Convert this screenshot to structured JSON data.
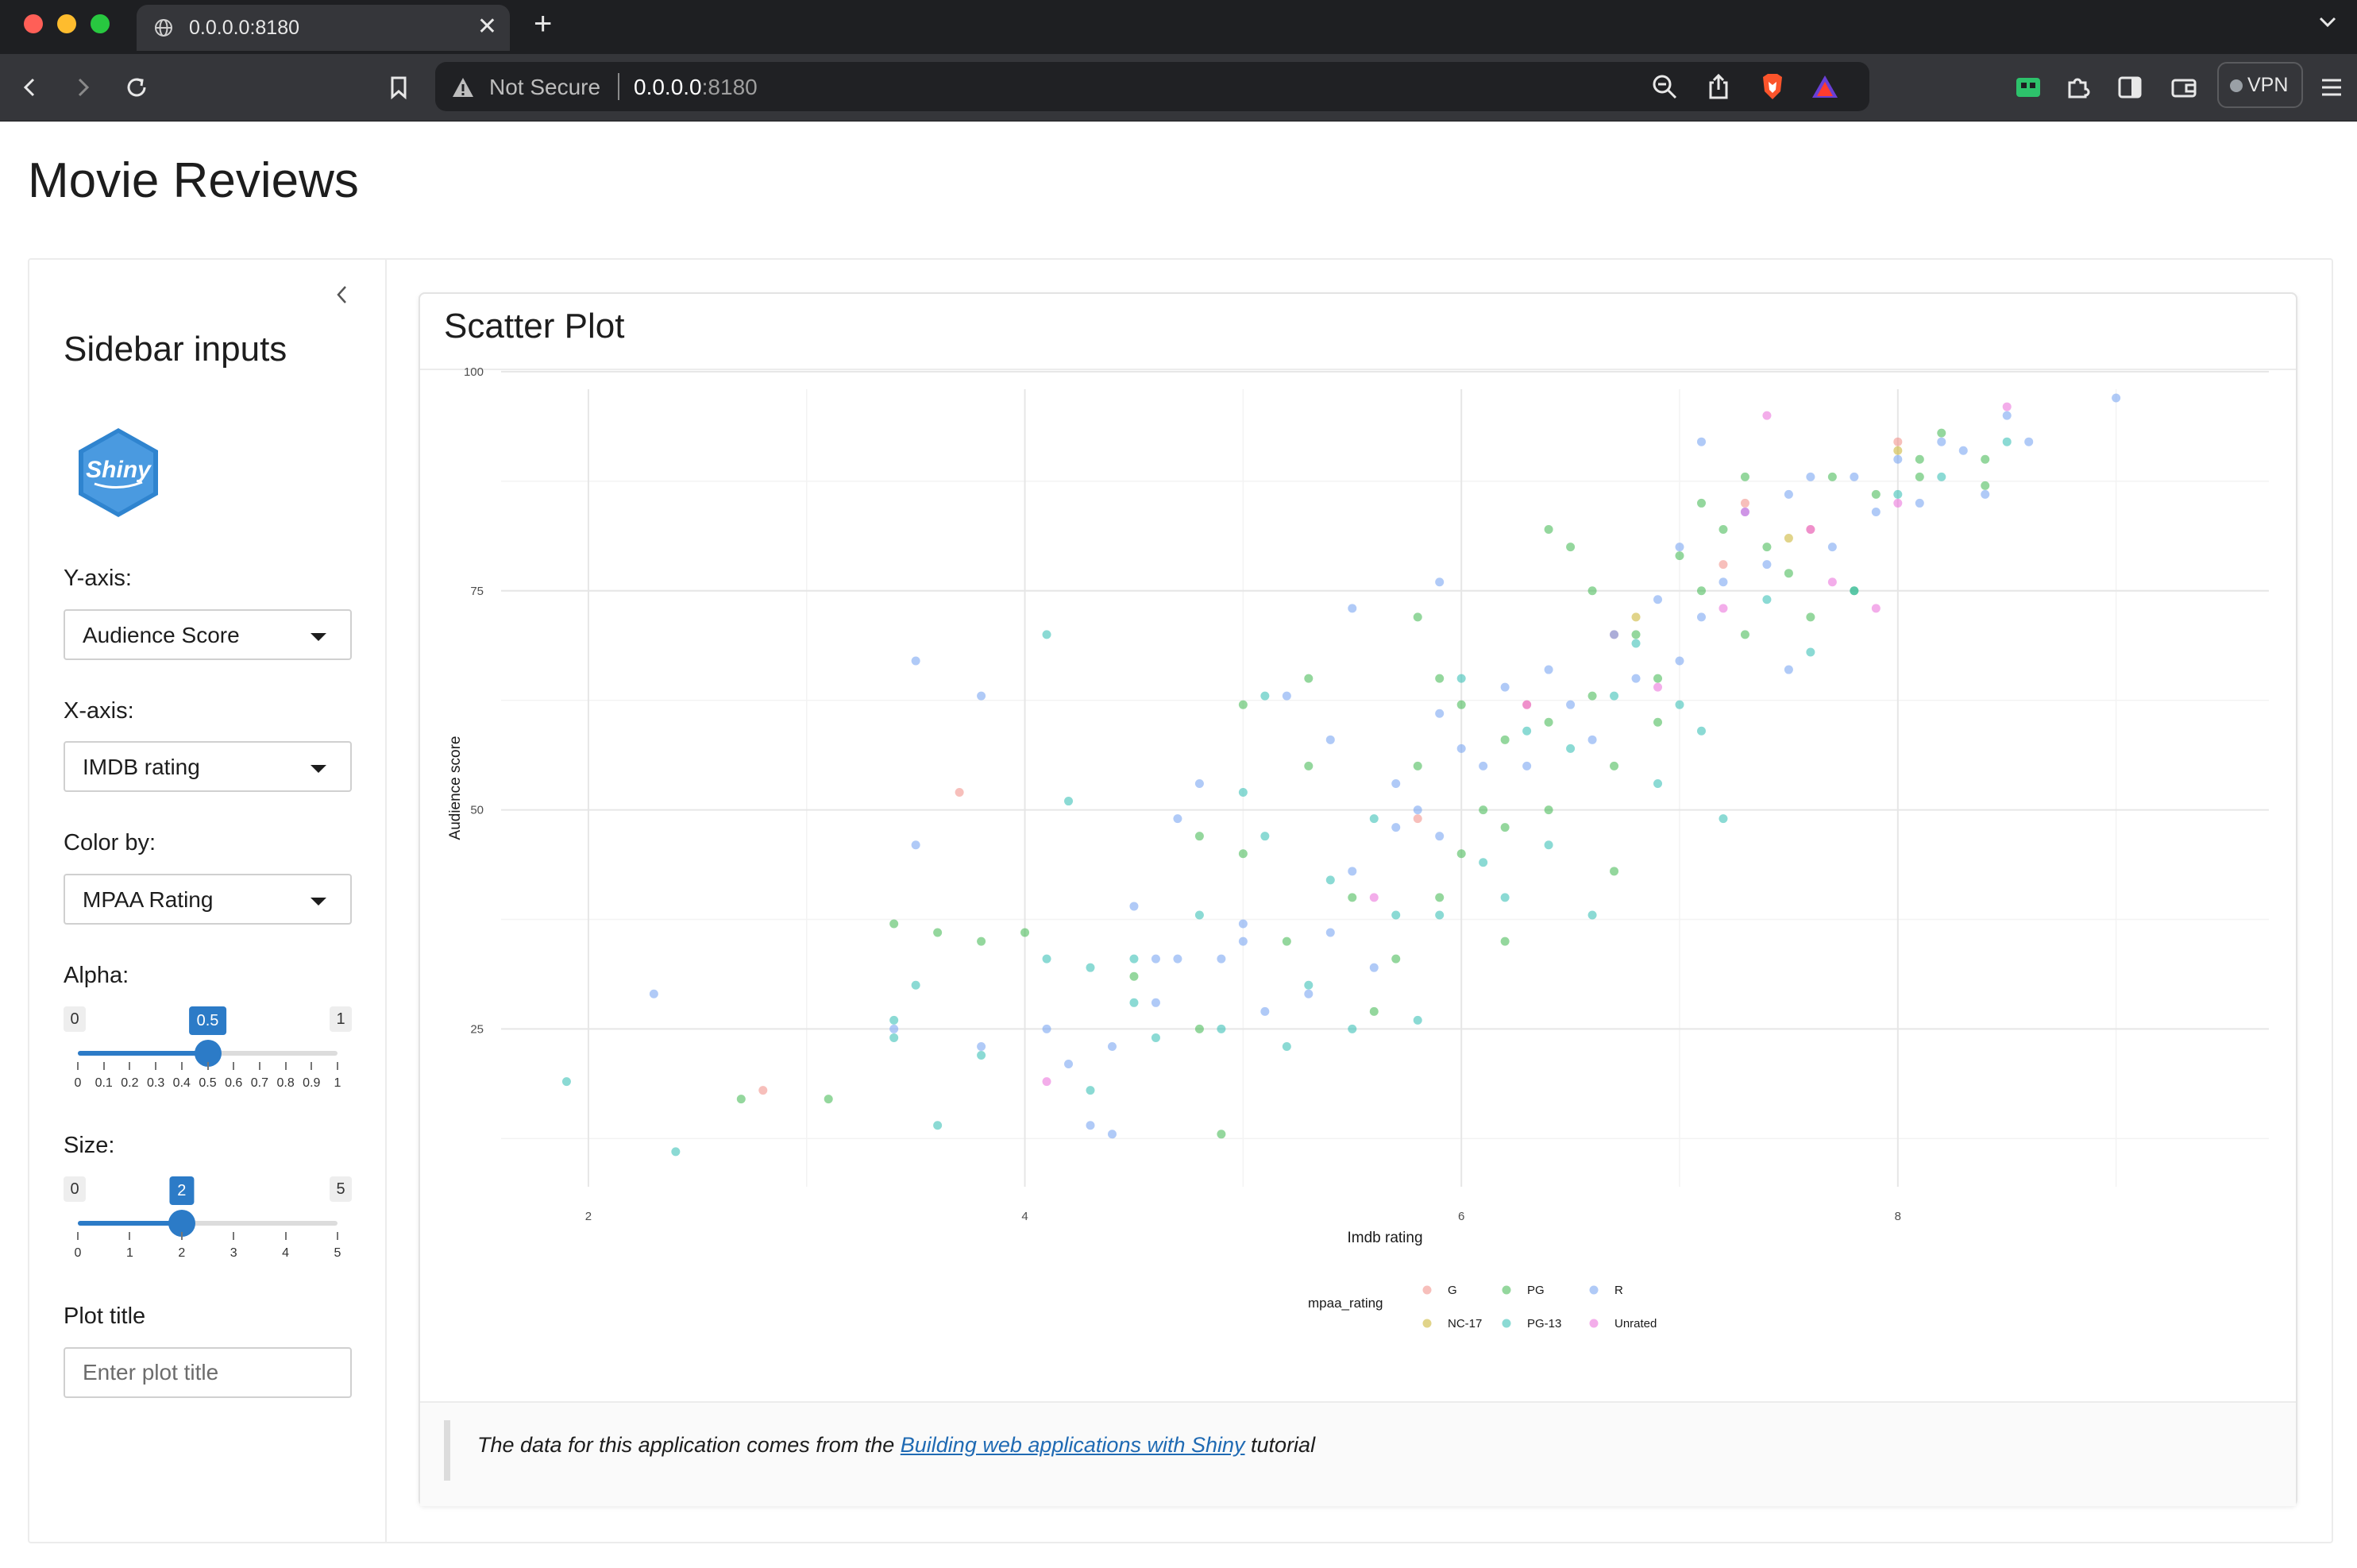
{
  "browser": {
    "tab_title": "0.0.0.0:8180",
    "security_label": "Not Secure",
    "url_host": "0.0.0.0",
    "url_port": ":8180",
    "vpn_label": "VPN"
  },
  "page": {
    "title": "Movie Reviews"
  },
  "sidebar": {
    "title": "Sidebar inputs",
    "logo_text": "Shiny",
    "y_axis": {
      "label": "Y-axis:",
      "value": "Audience Score"
    },
    "x_axis": {
      "label": "X-axis:",
      "value": "IMDB rating"
    },
    "color_by": {
      "label": "Color by:",
      "value": "MPAA Rating"
    },
    "alpha": {
      "label": "Alpha:",
      "min": "0",
      "max": "1",
      "value": "0.5",
      "fraction": 0.5,
      "ticks": [
        "0",
        "0.1",
        "0.2",
        "0.3",
        "0.4",
        "0.5",
        "0.6",
        "0.7",
        "0.8",
        "0.9",
        "1"
      ]
    },
    "size": {
      "label": "Size:",
      "min": "0",
      "max": "5",
      "value": "2",
      "fraction": 0.4,
      "ticks": [
        "0",
        "1",
        "2",
        "3",
        "4",
        "5"
      ]
    },
    "plot_title": {
      "label": "Plot title",
      "placeholder": "Enter plot title"
    }
  },
  "card": {
    "title": "Scatter Plot",
    "footer_prefix": "The data for this application comes from the ",
    "footer_link": "Building web applications with Shiny",
    "footer_suffix": " tutorial"
  },
  "colors": {
    "G": "#f08a84",
    "NC-17": "#c9b02a",
    "PG": "#3cb64c",
    "PG-13": "#2bbcb0",
    "R": "#6f9ff0",
    "Unrated": "#e96ad9",
    "accent": "#2c7bc7"
  },
  "chart_data": {
    "type": "scatter",
    "title": "",
    "xlabel": "Imdb rating",
    "ylabel": "Audience score",
    "xlim": [
      1.6,
      9.7
    ],
    "ylim": [
      7,
      98
    ],
    "x_ticks": [
      "2",
      "4",
      "6",
      "8"
    ],
    "y_ticks": [
      "25",
      "50",
      "75",
      "100"
    ],
    "grid": true,
    "legend": {
      "title": "mpaa_rating",
      "position": "bottom",
      "entries": [
        "G",
        "PG",
        "R",
        "NC-17",
        "PG-13",
        "Unrated"
      ]
    },
    "series": [
      {
        "name": "G",
        "points": [
          [
            2.8,
            18
          ],
          [
            3.7,
            52
          ],
          [
            7.3,
            85
          ],
          [
            7.6,
            82
          ],
          [
            8.0,
            92
          ],
          [
            6.7,
            70
          ],
          [
            7.2,
            78
          ],
          [
            5.8,
            49
          ],
          [
            6.3,
            62
          ]
        ]
      },
      {
        "name": "NC-17",
        "points": [
          [
            8.0,
            91
          ],
          [
            6.8,
            72
          ],
          [
            7.5,
            81
          ]
        ]
      },
      {
        "name": "PG",
        "points": [
          [
            2.7,
            17
          ],
          [
            3.1,
            17
          ],
          [
            3.4,
            37
          ],
          [
            3.6,
            36
          ],
          [
            3.8,
            35
          ],
          [
            4.0,
            36
          ],
          [
            4.5,
            31
          ],
          [
            4.8,
            47
          ],
          [
            4.8,
            25
          ],
          [
            4.9,
            13
          ],
          [
            5.0,
            62
          ],
          [
            5.0,
            45
          ],
          [
            5.2,
            35
          ],
          [
            5.3,
            65
          ],
          [
            5.3,
            55
          ],
          [
            5.5,
            40
          ],
          [
            5.6,
            27
          ],
          [
            5.7,
            33
          ],
          [
            5.8,
            72
          ],
          [
            5.8,
            55
          ],
          [
            5.9,
            65
          ],
          [
            5.9,
            40
          ],
          [
            6.0,
            62
          ],
          [
            6.0,
            45
          ],
          [
            6.1,
            50
          ],
          [
            6.2,
            48
          ],
          [
            6.2,
            58
          ],
          [
            6.2,
            35
          ],
          [
            6.4,
            82
          ],
          [
            6.4,
            60
          ],
          [
            6.4,
            50
          ],
          [
            6.5,
            80
          ],
          [
            6.6,
            75
          ],
          [
            6.6,
            63
          ],
          [
            6.7,
            55
          ],
          [
            6.7,
            43
          ],
          [
            6.8,
            70
          ],
          [
            6.9,
            65
          ],
          [
            6.9,
            60
          ],
          [
            7.0,
            79
          ],
          [
            7.1,
            85
          ],
          [
            7.1,
            75
          ],
          [
            7.2,
            82
          ],
          [
            7.3,
            88
          ],
          [
            7.3,
            70
          ],
          [
            7.4,
            80
          ],
          [
            7.5,
            77
          ],
          [
            7.6,
            72
          ],
          [
            7.7,
            88
          ],
          [
            7.8,
            75
          ],
          [
            7.9,
            86
          ],
          [
            8.1,
            90
          ],
          [
            8.2,
            93
          ],
          [
            8.4,
            87
          ],
          [
            8.4,
            90
          ],
          [
            8.1,
            88
          ]
        ]
      },
      {
        "name": "PG-13",
        "points": [
          [
            1.9,
            19
          ],
          [
            2.4,
            11
          ],
          [
            3.4,
            24
          ],
          [
            3.4,
            26
          ],
          [
            3.5,
            30
          ],
          [
            3.6,
            14
          ],
          [
            3.8,
            22
          ],
          [
            4.1,
            70
          ],
          [
            4.1,
            33
          ],
          [
            4.2,
            51
          ],
          [
            4.3,
            32
          ],
          [
            4.3,
            18
          ],
          [
            4.5,
            28
          ],
          [
            4.5,
            33
          ],
          [
            4.6,
            24
          ],
          [
            4.8,
            38
          ],
          [
            4.9,
            25
          ],
          [
            5.0,
            52
          ],
          [
            5.1,
            63
          ],
          [
            5.1,
            47
          ],
          [
            5.2,
            23
          ],
          [
            5.3,
            30
          ],
          [
            5.4,
            42
          ],
          [
            5.5,
            25
          ],
          [
            5.6,
            49
          ],
          [
            5.7,
            38
          ],
          [
            5.8,
            26
          ],
          [
            5.9,
            38
          ],
          [
            6.0,
            65
          ],
          [
            6.1,
            44
          ],
          [
            6.2,
            40
          ],
          [
            6.3,
            59
          ],
          [
            6.4,
            46
          ],
          [
            6.5,
            57
          ],
          [
            6.6,
            38
          ],
          [
            6.7,
            63
          ],
          [
            6.8,
            69
          ],
          [
            6.9,
            53
          ],
          [
            7.0,
            62
          ],
          [
            7.1,
            59
          ],
          [
            7.2,
            49
          ],
          [
            7.4,
            74
          ],
          [
            7.6,
            68
          ],
          [
            7.8,
            75
          ],
          [
            8.0,
            86
          ],
          [
            8.2,
            88
          ],
          [
            8.5,
            92
          ]
        ]
      },
      {
        "name": "R",
        "points": [
          [
            2.3,
            29
          ],
          [
            3.4,
            25
          ],
          [
            3.5,
            67
          ],
          [
            3.5,
            46
          ],
          [
            3.8,
            63
          ],
          [
            3.8,
            23
          ],
          [
            4.1,
            25
          ],
          [
            4.2,
            21
          ],
          [
            4.3,
            14
          ],
          [
            4.4,
            23
          ],
          [
            4.4,
            13
          ],
          [
            4.5,
            39
          ],
          [
            4.6,
            33
          ],
          [
            4.6,
            28
          ],
          [
            4.7,
            49
          ],
          [
            4.7,
            33
          ],
          [
            4.8,
            53
          ],
          [
            4.9,
            33
          ],
          [
            5.0,
            35
          ],
          [
            5.0,
            37
          ],
          [
            5.1,
            27
          ],
          [
            5.2,
            63
          ],
          [
            5.3,
            29
          ],
          [
            5.4,
            58
          ],
          [
            5.4,
            36
          ],
          [
            5.5,
            73
          ],
          [
            5.5,
            43
          ],
          [
            5.6,
            32
          ],
          [
            5.7,
            48
          ],
          [
            5.7,
            53
          ],
          [
            5.8,
            50
          ],
          [
            5.9,
            61
          ],
          [
            5.9,
            47
          ],
          [
            5.9,
            76
          ],
          [
            6.0,
            57
          ],
          [
            6.1,
            55
          ],
          [
            6.2,
            64
          ],
          [
            6.3,
            55
          ],
          [
            6.4,
            66
          ],
          [
            6.5,
            62
          ],
          [
            6.6,
            58
          ],
          [
            6.7,
            70
          ],
          [
            6.8,
            65
          ],
          [
            6.9,
            74
          ],
          [
            7.0,
            67
          ],
          [
            7.0,
            80
          ],
          [
            7.1,
            72
          ],
          [
            7.1,
            92
          ],
          [
            7.2,
            76
          ],
          [
            7.3,
            84
          ],
          [
            7.4,
            78
          ],
          [
            7.5,
            86
          ],
          [
            7.5,
            66
          ],
          [
            7.6,
            88
          ],
          [
            7.7,
            80
          ],
          [
            7.8,
            88
          ],
          [
            7.9,
            84
          ],
          [
            8.0,
            90
          ],
          [
            8.1,
            85
          ],
          [
            8.2,
            92
          ],
          [
            8.3,
            91
          ],
          [
            8.4,
            86
          ],
          [
            8.5,
            95
          ],
          [
            8.6,
            92
          ],
          [
            9.0,
            97
          ]
        ]
      },
      {
        "name": "Unrated",
        "points": [
          [
            4.1,
            19
          ],
          [
            5.6,
            40
          ],
          [
            6.3,
            62
          ],
          [
            6.9,
            64
          ],
          [
            7.2,
            73
          ],
          [
            7.3,
            84
          ],
          [
            7.4,
            95
          ],
          [
            7.6,
            82
          ],
          [
            7.9,
            73
          ],
          [
            8.0,
            85
          ],
          [
            8.5,
            96
          ],
          [
            7.7,
            76
          ]
        ]
      }
    ]
  }
}
